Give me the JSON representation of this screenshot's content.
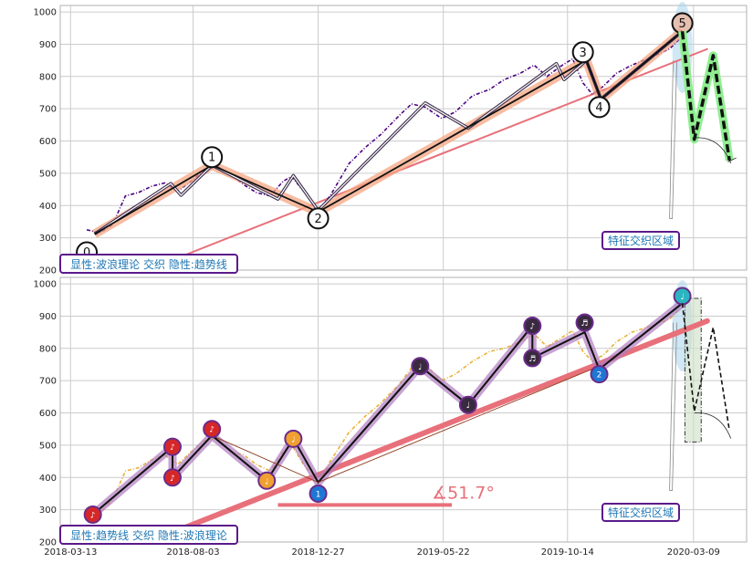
{
  "chart_data": [
    {
      "type": "line",
      "panel": "top",
      "ylim": [
        200,
        1020
      ],
      "y_ticks": [
        200,
        300,
        400,
        500,
        600,
        700,
        800,
        900,
        1000
      ],
      "x_range": [
        "2018-03-01",
        "2020-05-10"
      ],
      "grid": true,
      "price_series": {
        "color": "#4b0082",
        "style": "dash-dot",
        "points": [
          [
            "2018-04-01",
            325
          ],
          [
            "2018-04-16",
            315
          ],
          [
            "2018-05-01",
            340
          ],
          [
            "2018-05-16",
            430
          ],
          [
            "2018-05-31",
            440
          ],
          [
            "2018-06-16",
            460
          ],
          [
            "2018-07-01",
            470
          ],
          [
            "2018-07-16",
            445
          ],
          [
            "2018-08-01",
            475
          ],
          [
            "2018-08-16",
            510
          ],
          [
            "2018-09-01",
            520
          ],
          [
            "2018-09-16",
            495
          ],
          [
            "2018-10-01",
            465
          ],
          [
            "2018-10-16",
            440
          ],
          [
            "2018-11-01",
            430
          ],
          [
            "2018-11-16",
            475
          ],
          [
            "2018-11-26",
            490
          ],
          [
            "2018-12-10",
            445
          ],
          [
            "2018-12-27",
            385
          ],
          [
            "2019-01-10",
            430
          ],
          [
            "2019-02-01",
            530
          ],
          [
            "2019-02-20",
            580
          ],
          [
            "2019-03-10",
            620
          ],
          [
            "2019-04-01",
            680
          ],
          [
            "2019-04-15",
            715
          ],
          [
            "2019-05-01",
            705
          ],
          [
            "2019-05-20",
            670
          ],
          [
            "2019-06-05",
            690
          ],
          [
            "2019-06-25",
            740
          ],
          [
            "2019-07-15",
            760
          ],
          [
            "2019-08-01",
            790
          ],
          [
            "2019-08-20",
            810
          ],
          [
            "2019-09-05",
            835
          ],
          [
            "2019-09-20",
            800
          ],
          [
            "2019-10-05",
            830
          ],
          [
            "2019-10-20",
            855
          ],
          [
            "2019-11-01",
            780
          ],
          [
            "2019-11-12",
            745
          ],
          [
            "2019-11-25",
            770
          ],
          [
            "2019-12-10",
            810
          ],
          [
            "2019-12-28",
            835
          ],
          [
            "2020-01-20",
            860
          ],
          [
            "2020-02-10",
            885
          ],
          [
            "2020-02-25",
            925
          ]
        ]
      },
      "wave_points": [
        {
          "label": "0",
          "date": "2018-04-01",
          "value": 255
        },
        {
          "label": "1",
          "date": "2018-08-25",
          "value": 550
        },
        {
          "label": "2",
          "date": "2018-12-27",
          "value": 360
        },
        {
          "label": "3",
          "date": "2019-11-01",
          "value": 875
        },
        {
          "label": "4",
          "date": "2019-11-20",
          "value": 705
        },
        {
          "label": "5",
          "date": "2020-02-25",
          "value": 965
        }
      ],
      "wave_line": [
        [
          "2018-04-10",
          312
        ],
        [
          "2018-08-25",
          525
        ],
        [
          "2018-12-27",
          380
        ],
        [
          "2019-11-05",
          850
        ],
        [
          "2019-11-22",
          730
        ],
        [
          "2020-02-25",
          940
        ]
      ],
      "zigzag_line": [
        [
          "2018-04-10",
          312
        ],
        [
          "2018-07-08",
          468
        ],
        [
          "2018-07-20",
          432
        ],
        [
          "2018-08-25",
          525
        ],
        [
          "2018-11-10",
          420
        ],
        [
          "2018-11-28",
          493
        ],
        [
          "2018-12-27",
          385
        ],
        [
          "2019-05-01",
          718
        ],
        [
          "2019-06-20",
          640
        ],
        [
          "2019-10-01",
          840
        ],
        [
          "2019-10-10",
          790
        ],
        [
          "2019-11-05",
          850
        ],
        [
          "2019-11-22",
          730
        ],
        [
          "2020-02-25",
          940
        ]
      ],
      "trend_line": [
        [
          "2018-06-10",
          200
        ],
        [
          "2020-03-25",
          885
        ]
      ],
      "projection": [
        [
          "2020-02-25",
          940
        ],
        [
          "2020-03-10",
          605
        ],
        [
          "2020-04-01",
          865
        ],
        [
          "2020-04-20",
          540
        ]
      ],
      "label_text": "显性:波浪理论 交织 隐性:趋势线",
      "zone_label": "特征交织区域"
    },
    {
      "type": "line",
      "panel": "bottom",
      "ylim": [
        200,
        1020
      ],
      "y_ticks": [
        200,
        300,
        400,
        500,
        600,
        700,
        800,
        900,
        1000
      ],
      "x_range": [
        "2018-03-01",
        "2020-05-10"
      ],
      "x_ticks": [
        "2018-03-13",
        "2018-08-03",
        "2018-12-27",
        "2019-05-22",
        "2019-10-14",
        "2020-03-09"
      ],
      "grid": true,
      "price_series": {
        "color": "#e8b33a",
        "style": "dash-dot",
        "points": [
          [
            "2018-04-01",
            300
          ],
          [
            "2018-04-16",
            290
          ],
          [
            "2018-05-01",
            330
          ],
          [
            "2018-05-16",
            420
          ],
          [
            "2018-05-31",
            430
          ],
          [
            "2018-06-16",
            455
          ],
          [
            "2018-07-01",
            470
          ],
          [
            "2018-07-16",
            440
          ],
          [
            "2018-08-01",
            480
          ],
          [
            "2018-08-16",
            515
          ],
          [
            "2018-09-01",
            520
          ],
          [
            "2018-09-16",
            480
          ],
          [
            "2018-10-01",
            470
          ],
          [
            "2018-10-16",
            440
          ],
          [
            "2018-11-01",
            420
          ],
          [
            "2018-11-16",
            480
          ],
          [
            "2018-11-26",
            500
          ],
          [
            "2018-12-10",
            440
          ],
          [
            "2018-12-27",
            385
          ],
          [
            "2019-01-10",
            450
          ],
          [
            "2019-02-01",
            540
          ],
          [
            "2019-02-20",
            590
          ],
          [
            "2019-03-10",
            630
          ],
          [
            "2019-04-01",
            690
          ],
          [
            "2019-04-15",
            740
          ],
          [
            "2019-05-01",
            750
          ],
          [
            "2019-05-20",
            700
          ],
          [
            "2019-06-05",
            720
          ],
          [
            "2019-06-25",
            760
          ],
          [
            "2019-07-15",
            790
          ],
          [
            "2019-08-01",
            800
          ],
          [
            "2019-08-20",
            820
          ],
          [
            "2019-09-05",
            845
          ],
          [
            "2019-09-20",
            805
          ],
          [
            "2019-10-05",
            830
          ],
          [
            "2019-10-20",
            855
          ],
          [
            "2019-11-01",
            790
          ],
          [
            "2019-11-12",
            760
          ],
          [
            "2019-11-25",
            780
          ],
          [
            "2019-12-10",
            820
          ],
          [
            "2019-12-28",
            850
          ],
          [
            "2020-01-20",
            870
          ],
          [
            "2020-02-10",
            890
          ],
          [
            "2020-02-25",
            930
          ]
        ]
      },
      "markers": [
        {
          "date": "2018-04-08",
          "value": 285,
          "color": "#d62728"
        },
        {
          "date": "2018-07-10",
          "value": 495,
          "color": "#d62728"
        },
        {
          "date": "2018-07-10",
          "value": 400,
          "color": "#d62728"
        },
        {
          "date": "2018-08-25",
          "value": 550,
          "color": "#d62728"
        },
        {
          "date": "2018-10-28",
          "value": 390,
          "color": "#f0a030"
        },
        {
          "date": "2018-11-28",
          "value": 520,
          "color": "#f0a030"
        },
        {
          "date": "2018-12-27",
          "value": 350,
          "color": "#1f77d4"
        },
        {
          "date": "2019-04-25",
          "value": 745,
          "color": "#3a2a40"
        },
        {
          "date": "2019-06-20",
          "value": 625,
          "color": "#3a2a40"
        },
        {
          "date": "2019-09-03",
          "value": 870,
          "color": "#3a2a40"
        },
        {
          "date": "2019-09-03",
          "value": 770,
          "color": "#3a2a40"
        },
        {
          "date": "2019-11-03",
          "value": 880,
          "color": "#3a2a40"
        },
        {
          "date": "2019-11-20",
          "value": 720,
          "color": "#1f77d4"
        },
        {
          "date": "2020-02-25",
          "value": 962,
          "color": "#2ab5c0"
        }
      ],
      "marker_labels": [
        "♪",
        "♪",
        "♪",
        "♪",
        "♩",
        "♩",
        "1",
        "♩",
        "♩",
        "♪",
        "♬",
        "♬",
        "2",
        "♩"
      ],
      "marker_line": [
        [
          "2018-04-08",
          285
        ],
        [
          "2018-07-10",
          495
        ],
        [
          "2018-07-10",
          400
        ],
        [
          "2018-08-25",
          530
        ],
        [
          "2018-10-28",
          390
        ],
        [
          "2018-11-28",
          520
        ],
        [
          "2018-12-27",
          385
        ],
        [
          "2019-04-25",
          745
        ],
        [
          "2019-06-20",
          625
        ],
        [
          "2019-09-03",
          870
        ],
        [
          "2019-09-03",
          770
        ],
        [
          "2019-11-03",
          850
        ],
        [
          "2019-11-20",
          735
        ],
        [
          "2020-02-25",
          940
        ]
      ],
      "thin_lines": [
        [
          [
            "2018-08-25",
            530
          ],
          [
            "2018-12-27",
            385
          ]
        ],
        [
          [
            "2018-12-27",
            385
          ],
          [
            "2019-11-20",
            745
          ]
        ]
      ],
      "trend_line": [
        [
          "2018-07-01",
          220
        ],
        [
          "2020-03-25",
          885
        ]
      ],
      "angle_base": [
        [
          "2018-11-10",
          315
        ],
        [
          "2019-06-01",
          315
        ]
      ],
      "angle_label": "∡51.7°",
      "projection": [
        [
          "2020-02-25",
          940
        ],
        [
          "2020-03-10",
          605
        ],
        [
          "2020-04-01",
          865
        ],
        [
          "2020-04-20",
          545
        ]
      ],
      "label_text": "显性:趋势线 交织 隐性:波浪理论",
      "zone_label": "特征交织区域"
    }
  ]
}
